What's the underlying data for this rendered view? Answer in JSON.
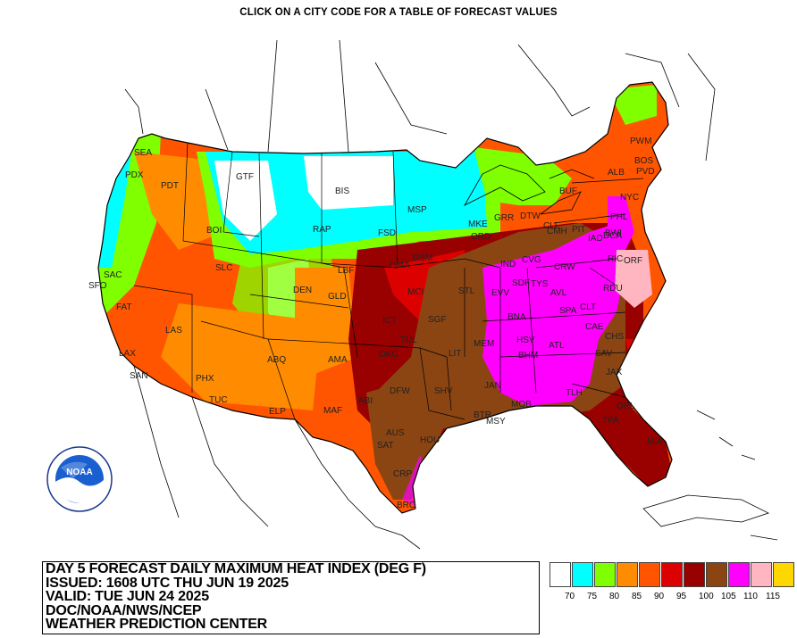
{
  "header": {
    "title": "CLICK ON A CITY CODE FOR A TABLE OF FORECAST VALUES"
  },
  "info": {
    "line1": "DAY 5 FORECAST DAILY MAXIMUM HEAT INDEX (DEG F)",
    "line2": "ISSUED: 1608 UTC THU JUN 19 2025",
    "line3": "VALID: TUE JUN 24 2025",
    "line4": "DOC/NOAA/NWS/NCEP",
    "line5": "WEATHER PREDICTION CENTER"
  },
  "logo": {
    "text": "NOAA"
  },
  "legend": {
    "colors": [
      "#ffffff",
      "#00ffff",
      "#7fff00",
      "#ff8c00",
      "#ff5500",
      "#dd0000",
      "#990000",
      "#8b4513",
      "#ff00ff",
      "#ffb6c1",
      "#ffd700"
    ],
    "labels": [
      "70",
      "75",
      "80",
      "85",
      "90",
      "95",
      "100",
      "105",
      "110",
      "115"
    ]
  },
  "cities": [
    "SEA",
    "PDX",
    "PDT",
    "GTF",
    "BIS",
    "MSP",
    "FSD",
    "RAP",
    "SLC",
    "BOI",
    "SAC",
    "SFO",
    "FAT",
    "LAS",
    "LAX",
    "SAN",
    "PHX",
    "TUC",
    "ABQ",
    "ELP",
    "DEN",
    "GLD",
    "LBF",
    "OMA",
    "DSM",
    "MCI",
    "ICT",
    "SGF",
    "STL",
    "TUL",
    "OKC",
    "AMA",
    "MAF",
    "ABI",
    "DFW",
    "SHV",
    "LIT",
    "MEM",
    "BNA",
    "EVV",
    "SDF",
    "IND",
    "CVG",
    "DTW",
    "MKE",
    "ORD",
    "GRR",
    "CLE",
    "PIT",
    "CMH",
    "CRW",
    "DCA",
    "RIC",
    "ORF",
    "RDU",
    "CLT",
    "CAE",
    "CHS",
    "SAV",
    "ATL",
    "BHM",
    "HSV",
    "JAN",
    "MSY",
    "MOB",
    "TLH",
    "JAX",
    "ORL",
    "TPA",
    "MIA",
    "AUS",
    "SAT",
    "HOU",
    "CRP",
    "BRO",
    "BTR",
    "ALB",
    "BOS",
    "PVD",
    "NYC",
    "PHL",
    "BWI",
    "IAD",
    "BUF",
    "PWM",
    "TYS",
    "SPA",
    "AVL"
  ]
}
